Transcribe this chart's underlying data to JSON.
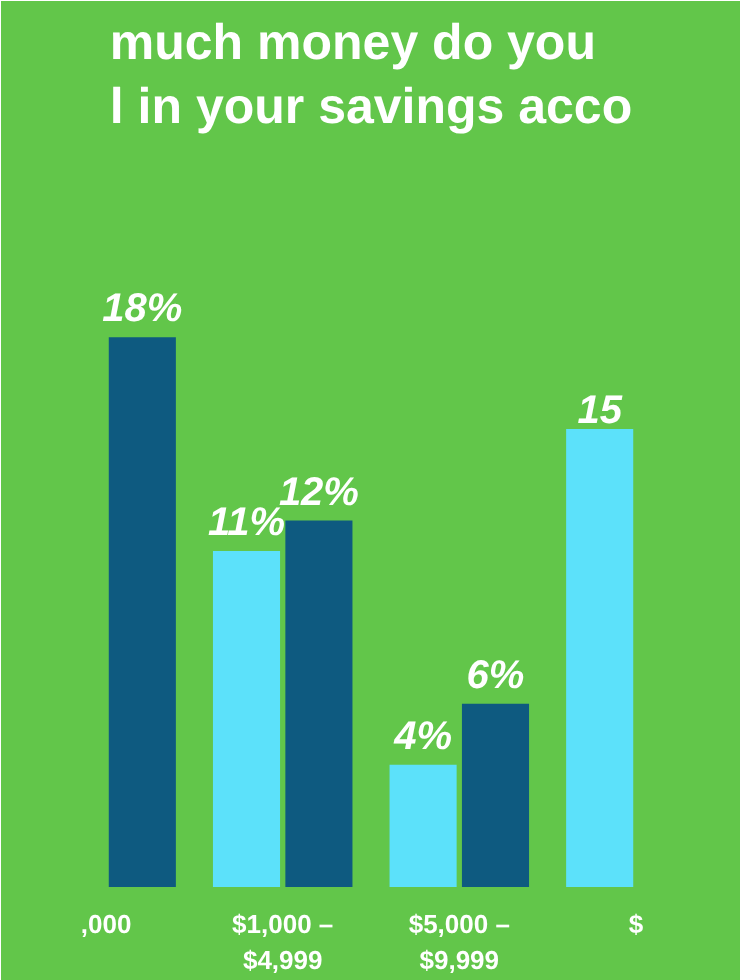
{
  "chart_data": {
    "type": "bar",
    "title": "much money do you\nl in your savings acco",
    "categories": [
      ",000",
      "$1,000 –\n$4,999",
      "$5,000 –\n$9,999",
      "$"
    ],
    "series": [
      {
        "color": "#5ce1fa",
        "values": [
          null,
          11,
          4,
          15
        ],
        "value_labels": [
          null,
          "11%",
          "4%",
          "15"
        ]
      },
      {
        "color": "#0e5a80",
        "values": [
          18,
          12,
          6,
          null
        ],
        "value_labels": [
          "18%",
          "12%",
          "6%",
          null
        ]
      }
    ],
    "grid": false
  }
}
